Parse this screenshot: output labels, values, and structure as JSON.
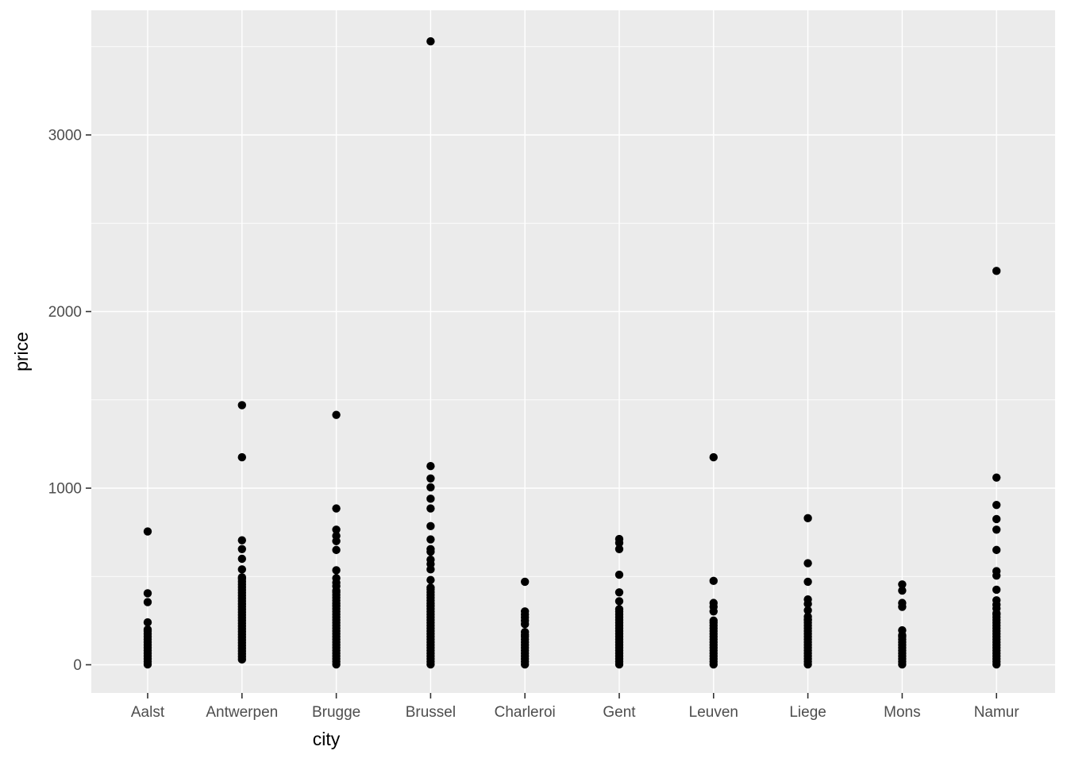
{
  "chart_data": {
    "type": "scatter",
    "subtype": "strip-plot",
    "title": "",
    "xlabel": "city",
    "ylabel": "price",
    "categories": [
      "Aalst",
      "Antwerpen",
      "Brugge",
      "Brussel",
      "Charleroi",
      "Gent",
      "Leuven",
      "Liege",
      "Mons",
      "Namur"
    ],
    "yticks": [
      0,
      1000,
      2000,
      3000
    ],
    "yminor": [
      500,
      1500,
      2500,
      3500
    ],
    "ylim": [
      -160,
      3710
    ],
    "grid": "white-on-gray",
    "legend": "none",
    "colors": {
      "point": "#000000",
      "panel_background": "#EBEBEB",
      "gridline": "#FFFFFF",
      "tick_mark": "#333333",
      "tick_label": "#4D4D4D",
      "axis_title": "#000000",
      "figure_background": "#FFFFFF"
    },
    "series": [
      {
        "name": "Aalst",
        "dense_range": [
          2,
          200
        ],
        "outliers": [
          240,
          355,
          405,
          755
        ]
      },
      {
        "name": "Antwerpen",
        "dense_range": [
          30,
          495
        ],
        "outliers": [
          540,
          600,
          655,
          705,
          1175,
          1470
        ]
      },
      {
        "name": "Brugge",
        "dense_range": [
          2,
          420
        ],
        "outliers": [
          445,
          465,
          490,
          535,
          650,
          700,
          730,
          765,
          885,
          1415
        ]
      },
      {
        "name": "Brussel",
        "dense_range": [
          2,
          437
        ],
        "outliers": [
          480,
          540,
          570,
          595,
          640,
          655,
          710,
          785,
          885,
          940,
          1005,
          1055,
          1125,
          3530
        ]
      },
      {
        "name": "Charleroi",
        "dense_range": [
          2,
          170
        ],
        "outliers": [
          185,
          230,
          250,
          268,
          285,
          302,
          470
        ]
      },
      {
        "name": "Gent",
        "dense_range": [
          2,
          315
        ],
        "outliers": [
          360,
          410,
          510,
          655,
          690,
          712
        ]
      },
      {
        "name": "Leuven",
        "dense_range": [
          2,
          250
        ],
        "outliers": [
          302,
          328,
          350,
          475,
          1175
        ]
      },
      {
        "name": "Liege",
        "dense_range": [
          2,
          255
        ],
        "outliers": [
          272,
          308,
          345,
          370,
          470,
          575,
          830
        ]
      },
      {
        "name": "Mons",
        "dense_range": [
          2,
          168
        ],
        "outliers": [
          195,
          328,
          350,
          420,
          455
        ]
      },
      {
        "name": "Namur",
        "dense_range": [
          2,
          292
        ],
        "outliers": [
          318,
          340,
          365,
          425,
          505,
          530,
          650,
          765,
          825,
          905,
          1060,
          2230
        ]
      }
    ]
  }
}
